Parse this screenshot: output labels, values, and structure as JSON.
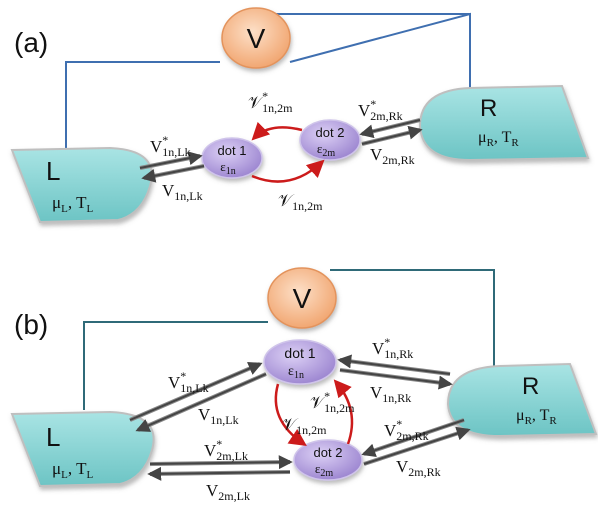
{
  "panel_a": {
    "label": "(a)",
    "voltmeter": "V",
    "left_lead": {
      "name": "L",
      "params_mu": "μ",
      "params_mu_sub": "L",
      "params_T": "T",
      "params_T_sub": "L"
    },
    "right_lead": {
      "name": "R",
      "params_mu": "μ",
      "params_mu_sub": "R",
      "params_T": "T",
      "params_T_sub": "R"
    },
    "dot1": {
      "name": "dot 1",
      "energy": "ε",
      "energy_sub": "1n"
    },
    "dot2": {
      "name": "dot 2",
      "energy": "ε",
      "energy_sub": "2m"
    },
    "couplings": {
      "v1nLk_star": {
        "base": "V",
        "sup": "*",
        "sub": "1n,Lk"
      },
      "v1nLk": {
        "base": "V",
        "sub": "1n,Lk"
      },
      "v2mRk_star": {
        "base": "V",
        "sup": "*",
        "sub": "2m,Rk"
      },
      "v2mRk": {
        "base": "V",
        "sub": "2m,Rk"
      },
      "inter_star": {
        "base": "𝒱",
        "sup": "*",
        "sub": "1n,2m"
      },
      "inter": {
        "base": "𝒱",
        "sub": "1n,2m"
      }
    }
  },
  "panel_b": {
    "label": "(b)",
    "voltmeter": "V",
    "left_lead": {
      "name": "L",
      "params_mu": "μ",
      "params_mu_sub": "L",
      "params_T": "T",
      "params_T_sub": "L"
    },
    "right_lead": {
      "name": "R",
      "params_mu": "μ",
      "params_mu_sub": "R",
      "params_T": "T",
      "params_T_sub": "R"
    },
    "dot1": {
      "name": "dot 1",
      "energy": "ε",
      "energy_sub": "1n"
    },
    "dot2": {
      "name": "dot 2",
      "energy": "ε",
      "energy_sub": "2m"
    },
    "couplings": {
      "v1nLk_star": {
        "base": "V",
        "sup": "*",
        "sub": "1n,Lk"
      },
      "v1nLk": {
        "base": "V",
        "sub": "1n,Lk"
      },
      "v2mLk_star": {
        "base": "V",
        "sup": "*",
        "sub": "2m,Lk"
      },
      "v2mLk": {
        "base": "V",
        "sub": "2m,Lk"
      },
      "v1nRk_star": {
        "base": "V",
        "sup": "*",
        "sub": "1n,Rk"
      },
      "v1nRk": {
        "base": "V",
        "sub": "1n,Rk"
      },
      "v2mRk_star": {
        "base": "V",
        "sup": "*",
        "sub": "2m,Rk"
      },
      "v2mRk": {
        "base": "V",
        "sub": "2m,Rk"
      },
      "inter_star": {
        "base": "𝒱",
        "sup": "*",
        "sub": "1n,2m"
      },
      "inter": {
        "base": "𝒱",
        "sub": "1n,2m"
      }
    }
  },
  "colors": {
    "lead_fill": "#8fd6d6",
    "lead_edge": "#5fb8b8",
    "dot_fill": "#b8a6df",
    "voltmeter_fill": "#f6b98a",
    "wire": "#3f6fb0",
    "arrow_dark": "#444444",
    "arrow_red": "#cc1b1b"
  }
}
